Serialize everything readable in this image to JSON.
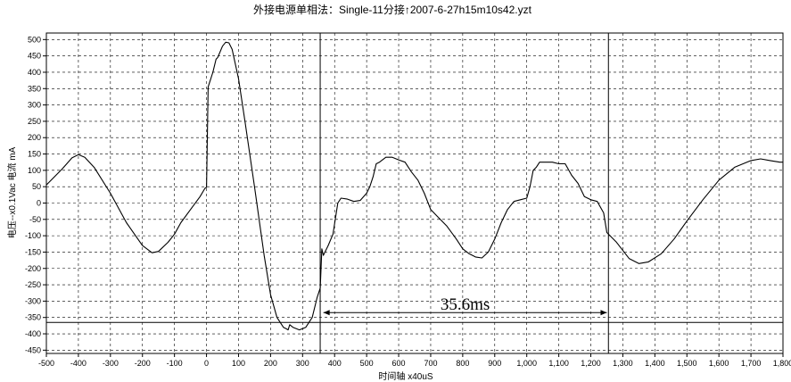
{
  "chart_data": {
    "type": "line",
    "title": "外接电源单相法：Single-11分接↑2007-6-27h15m10s42.yzt",
    "xlabel": "时间轴 x40uS",
    "ylabel": "电压--x0.1Vac 电流 mA",
    "xlim": [
      -500,
      1800
    ],
    "ylim": [
      -460,
      520
    ],
    "x_ticks": [
      -500,
      -400,
      -300,
      -200,
      -100,
      0,
      100,
      200,
      300,
      400,
      500,
      600,
      700,
      800,
      900,
      1000,
      1100,
      1200,
      1300,
      1400,
      1500,
      1600,
      1700,
      1800
    ],
    "x_tick_labels": [
      "-500",
      "-400",
      "-300",
      "-200",
      "-100",
      "0",
      "100",
      "200",
      "300",
      "400",
      "500",
      "600",
      "700",
      "800",
      "900",
      "1,000",
      "1,100",
      "1,200",
      "1,300",
      "1,400",
      "1,500",
      "1,600",
      "1,700",
      "1,800"
    ],
    "y_ticks": [
      500,
      450,
      400,
      350,
      300,
      250,
      200,
      150,
      100,
      50,
      0,
      -50,
      -100,
      -150,
      -200,
      -250,
      -300,
      -350,
      -400,
      -450
    ],
    "y_tick_labels": [
      "500",
      "450",
      "400",
      "350",
      "300",
      "250",
      "200",
      "150",
      "100",
      "50",
      "0",
      "-50",
      "-100",
      "-150",
      "-200",
      "-250",
      "-300",
      "-350",
      "-400",
      "-450"
    ],
    "grid": true,
    "annotation": {
      "label": "35.6ms",
      "x_start": 365,
      "x_end": 1250,
      "y": -335
    },
    "vertical_markers": [
      355,
      1255
    ],
    "horizontal_marker": -365,
    "series": [
      {
        "x": [
          -500,
          -450,
          -420,
          -400,
          -380,
          -350,
          -300,
          -250,
          -200,
          -170,
          -150,
          -120,
          -100,
          -80,
          -50,
          -20,
          -5,
          0,
          5,
          20,
          30,
          35,
          50,
          60,
          70,
          80,
          100,
          120,
          150,
          180,
          200,
          220,
          240,
          250,
          255,
          260,
          270,
          290,
          310,
          330,
          345,
          355,
          360,
          365,
          380,
          395,
          410,
          420,
          440,
          460,
          480,
          500,
          510,
          520,
          530,
          540,
          560,
          580,
          600,
          620,
          640,
          660,
          680,
          700,
          720,
          750,
          780,
          800,
          820,
          840,
          860,
          880,
          900,
          920,
          940,
          960,
          980,
          1000,
          1010,
          1020,
          1030,
          1040,
          1060,
          1080,
          1100,
          1120,
          1140,
          1160,
          1180,
          1200,
          1220,
          1240,
          1250,
          1260,
          1280,
          1300,
          1320,
          1350,
          1380,
          1420,
          1460,
          1500,
          1550,
          1600,
          1650,
          1700,
          1730,
          1760,
          1790,
          1800
        ],
        "y": [
          55,
          105,
          138,
          148,
          140,
          108,
          30,
          -60,
          -130,
          -152,
          -148,
          -120,
          -95,
          -60,
          -20,
          20,
          45,
          48,
          355,
          400,
          440,
          445,
          480,
          492,
          490,
          470,
          380,
          250,
          50,
          -160,
          -280,
          -350,
          -380,
          -385,
          -388,
          -372,
          -380,
          -388,
          -380,
          -350,
          -290,
          -260,
          -140,
          -160,
          -130,
          -95,
          0,
          15,
          12,
          5,
          8,
          30,
          50,
          80,
          120,
          125,
          140,
          140,
          132,
          125,
          95,
          70,
          30,
          -20,
          -40,
          -70,
          -110,
          -140,
          -155,
          -165,
          -168,
          -150,
          -110,
          -60,
          -20,
          5,
          10,
          15,
          50,
          100,
          110,
          125,
          125,
          125,
          120,
          120,
          85,
          60,
          20,
          10,
          5,
          -30,
          -90,
          -100,
          -120,
          -145,
          -170,
          -185,
          -180,
          -155,
          -110,
          -55,
          10,
          70,
          110,
          130,
          135,
          130,
          125,
          125
        ]
      }
    ]
  }
}
